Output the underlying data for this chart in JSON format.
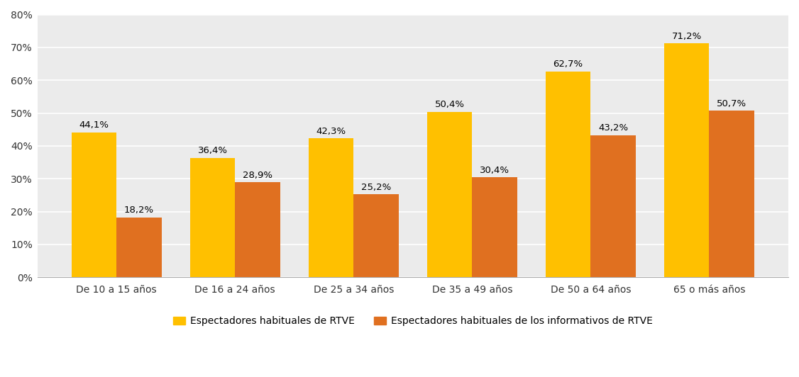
{
  "categories": [
    "De 10 a 15 años",
    "De 16 a 24 años",
    "De 25 a 34 años",
    "De 35 a 49 años",
    "De 50 a 64 años",
    "65 o más años"
  ],
  "series": [
    {
      "name": "Espectadores habituales de RTVE",
      "values": [
        44.1,
        36.4,
        42.3,
        50.4,
        62.7,
        71.2
      ],
      "color": "#FFC000"
    },
    {
      "name": "Espectadores habituales de los informativos de RTVE",
      "values": [
        18.2,
        28.9,
        25.2,
        30.4,
        43.2,
        50.7
      ],
      "color": "#E07020"
    }
  ],
  "ylim": [
    0,
    80
  ],
  "yticks": [
    0,
    10,
    20,
    30,
    40,
    50,
    60,
    70,
    80
  ],
  "ytick_labels": [
    "0%",
    "10%",
    "20%",
    "30%",
    "40%",
    "50%",
    "60%",
    "70%",
    "80%"
  ],
  "bar_width": 0.38,
  "plot_bg_color": "#EBEBEB",
  "fig_bg_color": "#FFFFFF",
  "grid_color": "#FFFFFF",
  "tick_fontsize": 10,
  "legend_fontsize": 10,
  "annotation_fontsize": 9.5
}
